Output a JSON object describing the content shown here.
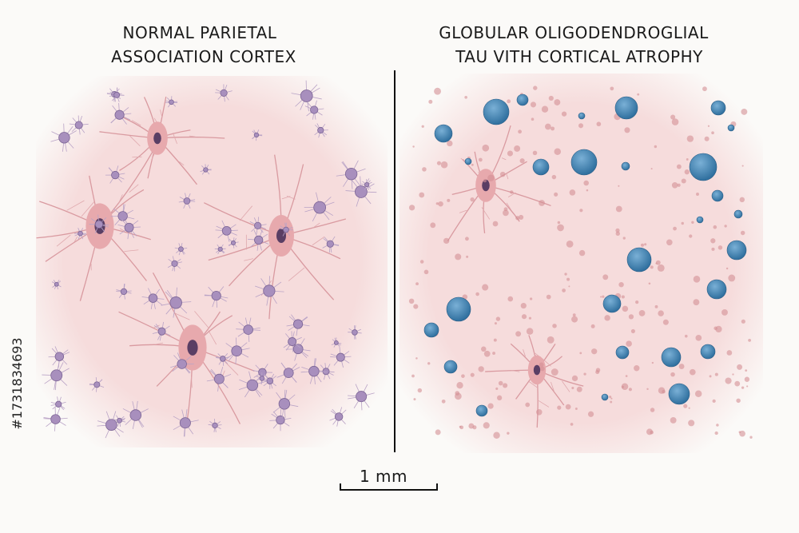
{
  "panels": [
    {
      "title_lines": [
        "NORMAL PARIETAL",
        "ASSOCIATION CORTEX"
      ]
    },
    {
      "title_lines": [
        "GLOBULAR OLIGODENDROGLIAL",
        "TAU VITH CORTICAL ATROPHY"
      ]
    }
  ],
  "scale_bar": {
    "label": "1 mm"
  },
  "watermark": {
    "id": "#1731834693"
  }
}
